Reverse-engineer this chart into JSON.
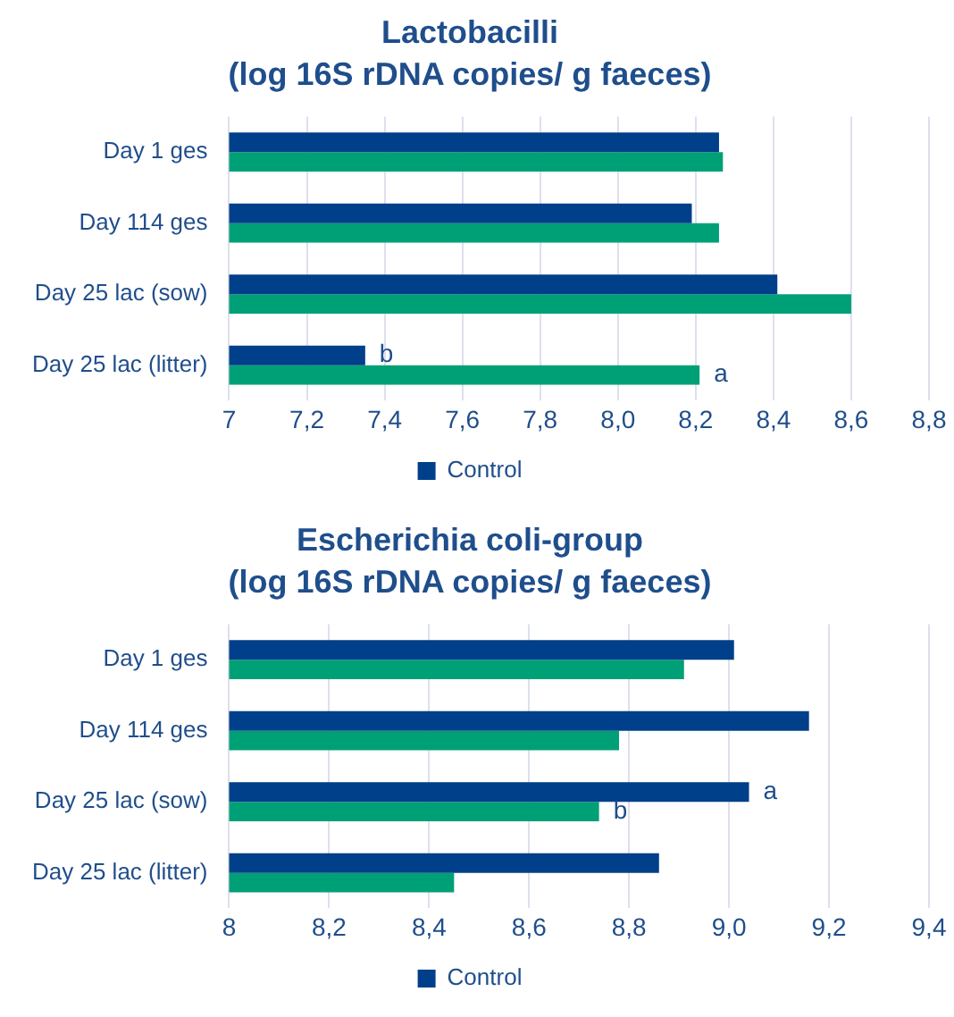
{
  "chart_data": [
    {
      "type": "bar",
      "orientation": "horizontal",
      "title": "Lactobacilli",
      "subtitle": "(log 16S rDNA copies/ g faeces)",
      "categories": [
        "Day 1 ges",
        "Day 114 ges",
        "Day 25 lac (sow)",
        "Day 25 lac (litter)"
      ],
      "series": [
        {
          "name": "Control",
          "color": "#003f8a",
          "values": [
            8.26,
            8.19,
            8.41,
            7.35
          ]
        },
        {
          "color": "#00a077",
          "values": [
            8.27,
            8.26,
            8.6,
            8.21
          ]
        }
      ],
      "xlim": [
        7,
        8.8
      ],
      "xticks": [
        7,
        {
          "value": 7.2,
          "label": "7,2"
        },
        {
          "value": 7.4,
          "label": "7,4"
        },
        {
          "value": 7.6,
          "label": "7,6"
        },
        {
          "value": 7.8,
          "label": "7,8"
        },
        {
          "value": 8.0,
          "label": "8,0"
        },
        {
          "value": 8.2,
          "label": "8,2"
        },
        {
          "value": 8.4,
          "label": "8,4"
        },
        {
          "value": 8.6,
          "label": "8,6"
        },
        {
          "value": 8.8,
          "label": "8,8"
        }
      ],
      "grid": "x",
      "legend": "bottom",
      "annotations": [
        {
          "text": "b",
          "x": 7.35,
          "y": "Day 25 lac (litter)"
        },
        {
          "text": "a",
          "x": 8.21,
          "y": "Day 25 lac (litter)"
        }
      ]
    },
    {
      "type": "bar",
      "orientation": "horizontal",
      "title": "Escherichia coli-group",
      "subtitle": "(log 16S rDNA copies/ g faeces)",
      "categories": [
        "Day 1 ges",
        "Day 114 ges",
        "Day 25 lac (sow)",
        "Day 25 lac (litter)"
      ],
      "series": [
        {
          "name": "Control",
          "color": "#003f8a",
          "values": [
            9.01,
            9.16,
            9.04,
            8.86
          ]
        },
        {
          "color": "#00a077",
          "values": [
            8.91,
            8.78,
            8.74,
            8.45
          ]
        }
      ],
      "xlim": [
        8,
        9.4
      ],
      "xticks": [
        8,
        {
          "value": 8.2,
          "label": "8,2"
        },
        {
          "value": 8.4,
          "label": "8,4"
        },
        {
          "value": 8.6,
          "label": "8,6"
        },
        {
          "value": 8.8,
          "label": "8,8"
        },
        {
          "value": 9.0,
          "label": "9,0"
        },
        {
          "value": 9.2,
          "label": "9,2"
        },
        {
          "value": 9.4,
          "label": "9,4"
        }
      ],
      "grid": "x",
      "legend": "bottom",
      "annotations": [
        {
          "text": "a",
          "x": 9.04,
          "y": "Day 25 lac (sow)"
        },
        {
          "text": "b",
          "x": 8.74,
          "y": "Day 25 lac (sow)"
        }
      ]
    }
  ]
}
